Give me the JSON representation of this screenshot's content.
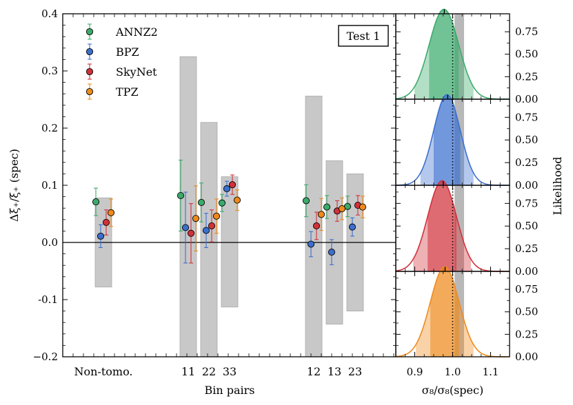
{
  "chart_data": {
    "main_panel": {
      "type": "errorbar-scatter",
      "ylabel": "Δξ₊/ξ₊ (spec)",
      "xlabel": "Bin pairs",
      "ylim": [
        -0.2,
        0.4
      ],
      "yticks": [
        -0.2,
        -0.1,
        0.0,
        0.1,
        0.2,
        0.3,
        0.4
      ],
      "ytick_labels": [
        "−0.2",
        "-0.1",
        "0.0",
        "0.1",
        "0.2",
        "0.3",
        "0.4"
      ],
      "groups": [
        {
          "label": "Non-tomo.",
          "band": [
            -0.078,
            0.078
          ]
        },
        {
          "label": "11",
          "band": [
            -0.2,
            0.325
          ]
        },
        {
          "label": "22",
          "band": [
            -0.2,
            0.21
          ]
        },
        {
          "label": "33",
          "band": [
            -0.113,
            0.115
          ]
        },
        {
          "label": "12",
          "band": [
            -0.2,
            0.256
          ]
        },
        {
          "label": "13",
          "band": [
            -0.143,
            0.143
          ]
        },
        {
          "label": "23",
          "band": [
            -0.12,
            0.12
          ]
        }
      ],
      "annotation": "Test 1",
      "series": [
        {
          "name": "ANNZ2",
          "color": "#3bab6b",
          "values": [
            0.071,
            0.082,
            0.07,
            0.069,
            0.073,
            0.062,
            0.063
          ],
          "errors": [
            0.024,
            0.062,
            0.034,
            0.015,
            0.028,
            0.02,
            0.018
          ]
        },
        {
          "name": "BPZ",
          "color": "#3b6fcf",
          "values": [
            0.011,
            0.026,
            0.021,
            0.094,
            -0.003,
            -0.017,
            0.027
          ],
          "errors": [
            0.02,
            0.062,
            0.03,
            0.013,
            0.022,
            0.022,
            0.016
          ]
        },
        {
          "name": "SkyNet",
          "color": "#d1313a",
          "values": [
            0.035,
            0.016,
            0.029,
            0.101,
            0.029,
            0.055,
            0.065
          ],
          "errors": [
            0.022,
            0.052,
            0.028,
            0.017,
            0.024,
            0.018,
            0.017
          ]
        },
        {
          "name": "TPZ",
          "color": "#ee8a1b",
          "values": [
            0.052,
            0.042,
            0.046,
            0.074,
            0.049,
            0.059,
            0.062
          ],
          "errors": [
            0.024,
            0.057,
            0.03,
            0.018,
            0.028,
            0.019,
            0.019
          ]
        }
      ]
    },
    "side_panels": {
      "type": "area",
      "xlabel": "σ₈/σ₈(spec)",
      "ylabel": "Likelihood",
      "xlim": [
        0.85,
        1.15
      ],
      "xticks": [
        0.9,
        1.0,
        1.1
      ],
      "xtick_labels": [
        "0.9",
        "1.0",
        "1.1"
      ],
      "ylim": [
        0,
        0.95
      ],
      "yticks": [
        0.0,
        0.25,
        0.5,
        0.75
      ],
      "ytick_labels": [
        "0.00",
        "0.25",
        "0.50",
        "0.75"
      ],
      "spec_band": [
        1.005,
        1.03
      ],
      "reference_line": 1.0,
      "panels": [
        {
          "series": "ANNZ2",
          "color": "#3bab6b",
          "mean": 0.977,
          "sigma": 0.039,
          "marked_value": 0.978
        },
        {
          "series": "BPZ",
          "color": "#3b6fcf",
          "mean": 0.985,
          "sigma": 0.035,
          "marked_value": 0.987
        },
        {
          "series": "SkyNet",
          "color": "#d1313a",
          "mean": 0.972,
          "sigma": 0.038,
          "marked_value": 0.975
        },
        {
          "series": "TPZ",
          "color": "#ee8a1b",
          "mean": 0.979,
          "sigma": 0.038,
          "marked_value": 0.98
        }
      ]
    }
  }
}
